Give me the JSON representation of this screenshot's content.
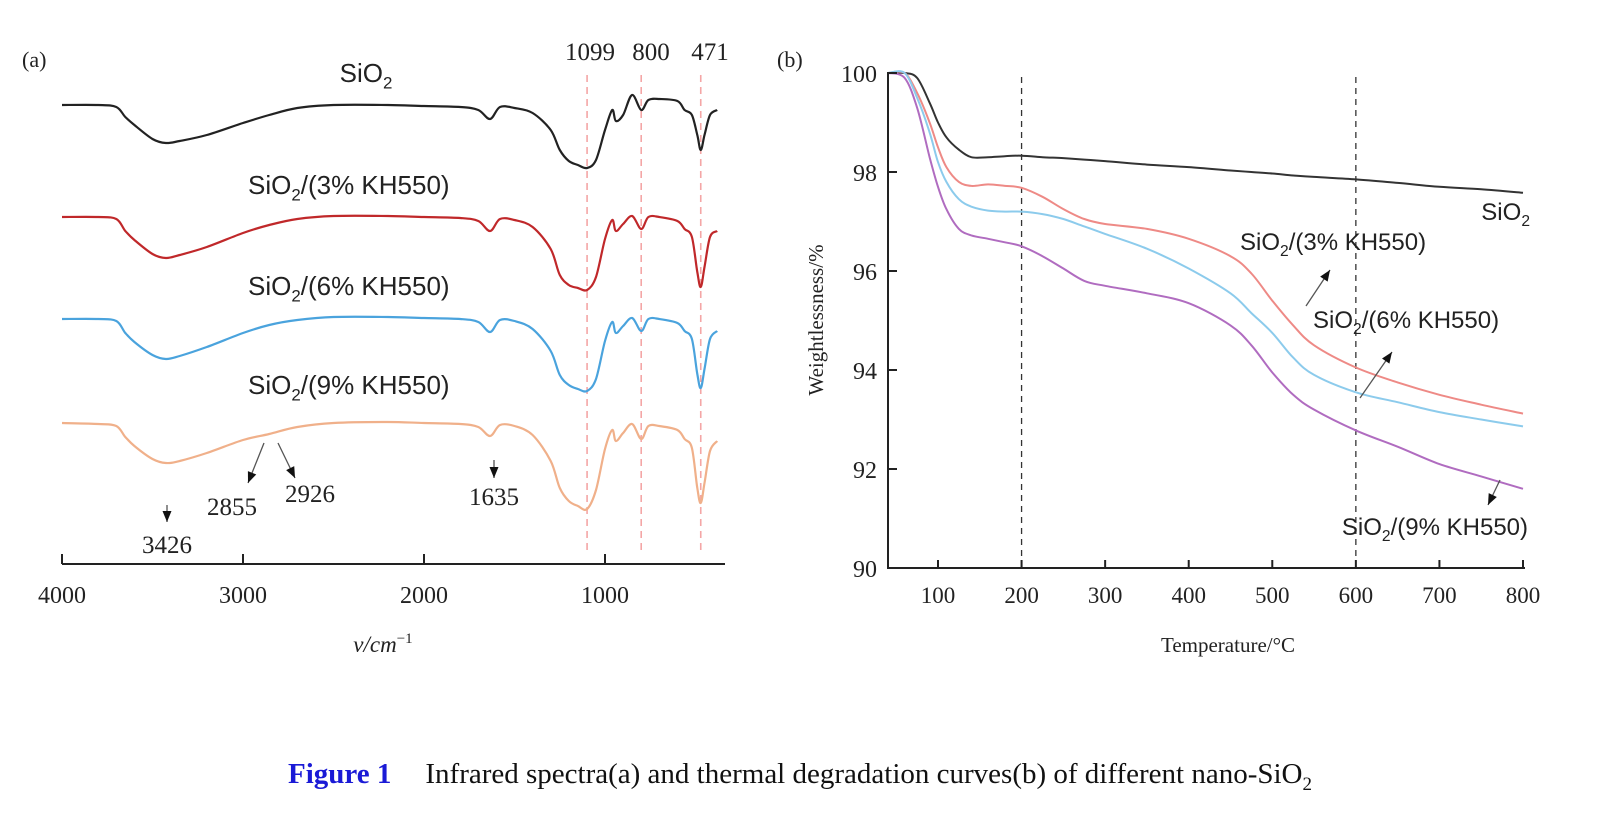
{
  "caption": {
    "label": "Figure 1",
    "text": "Infrared spectra(a) and thermal degradation curves(b) of different nano-SiO",
    "subscript": "2"
  },
  "chart_data": [
    {
      "panel": "(a)",
      "type": "line",
      "title": "",
      "xlabel": "v/cm",
      "xlabel_superscript": "−1",
      "ylabel": "",
      "xlim": [
        4000,
        350
      ],
      "x_reversed": true,
      "xticks": [
        4000,
        3000,
        2000,
        1000
      ],
      "yaxis_visible": false,
      "grid": false,
      "reference_lines": {
        "style": "dashed",
        "color": "#f4a6a6",
        "positions": [
          1099,
          800,
          471
        ],
        "labels": [
          "1099",
          "800",
          "471"
        ]
      },
      "annotations": [
        {
          "text": "3426",
          "x": 3426,
          "series": "SiO2/(9% KH550)",
          "arrow": "down"
        },
        {
          "text": "2855",
          "x": 2855,
          "series": "SiO2/(9% KH550)",
          "arrow": "down-left"
        },
        {
          "text": "2926",
          "x": 2926,
          "series": "SiO2/(9% KH550)",
          "arrow": "down-right"
        },
        {
          "text": "1635",
          "x": 1635,
          "series": "SiO2/(9% KH550)",
          "arrow": "down"
        }
      ],
      "y_units": "relative transmittance (stacked, offset per series)",
      "x": [
        4000,
        3800,
        3700,
        3650,
        3600,
        3500,
        3426,
        3350,
        3200,
        3000,
        2855,
        2700,
        2500,
        2200,
        2000,
        1800,
        1700,
        1635,
        1580,
        1500,
        1400,
        1300,
        1250,
        1200,
        1150,
        1099,
        1050,
        1000,
        960,
        940,
        900,
        850,
        800,
        760,
        700,
        600,
        560,
        520,
        490,
        471,
        450,
        420,
        380
      ],
      "series": [
        {
          "name": "SiO2",
          "color": "#222222",
          "offset": 0,
          "values": [
            1.0,
            1.0,
            0.98,
            0.88,
            0.8,
            0.66,
            0.62,
            0.64,
            0.7,
            0.82,
            0.9,
            0.97,
            1.0,
            1.0,
            0.99,
            0.98,
            0.95,
            0.86,
            0.98,
            0.97,
            0.92,
            0.75,
            0.55,
            0.44,
            0.4,
            0.37,
            0.45,
            0.75,
            0.95,
            0.84,
            0.9,
            1.1,
            0.95,
            1.05,
            1.06,
            1.04,
            0.95,
            0.9,
            0.7,
            0.55,
            0.7,
            0.9,
            0.95
          ]
        },
        {
          "name": "SiO2/(3% KH550)",
          "color": "#c0282a",
          "offset": 1,
          "values": [
            1.0,
            1.0,
            0.98,
            0.86,
            0.77,
            0.63,
            0.59,
            0.62,
            0.7,
            0.84,
            0.92,
            0.98,
            1.01,
            1.01,
            1.0,
            0.99,
            0.96,
            0.86,
            0.98,
            0.97,
            0.9,
            0.68,
            0.42,
            0.32,
            0.29,
            0.27,
            0.4,
            0.78,
            0.97,
            0.86,
            0.93,
            1.01,
            0.88,
            1.0,
            1.0,
            0.96,
            0.88,
            0.8,
            0.45,
            0.3,
            0.5,
            0.8,
            0.86
          ]
        },
        {
          "name": "SiO2/(6% KH550)",
          "color": "#4aa3dd",
          "offset": 2,
          "values": [
            1.0,
            1.0,
            0.98,
            0.86,
            0.77,
            0.64,
            0.6,
            0.63,
            0.72,
            0.86,
            0.94,
            0.99,
            1.02,
            1.02,
            1.01,
            1.0,
            0.97,
            0.87,
            0.99,
            0.98,
            0.9,
            0.68,
            0.44,
            0.34,
            0.3,
            0.28,
            0.4,
            0.78,
            0.97,
            0.86,
            0.93,
            1.01,
            0.88,
            1.0,
            1.0,
            0.96,
            0.88,
            0.8,
            0.45,
            0.31,
            0.5,
            0.8,
            0.88
          ]
        },
        {
          "name": "SiO2/(9% KH550)",
          "color": "#f0b08a",
          "offset": 3,
          "values": [
            1.0,
            0.99,
            0.97,
            0.86,
            0.77,
            0.64,
            0.6,
            0.62,
            0.7,
            0.83,
            0.89,
            0.96,
            1.0,
            1.01,
            1.0,
            0.99,
            0.96,
            0.87,
            0.98,
            0.97,
            0.88,
            0.62,
            0.35,
            0.22,
            0.17,
            0.14,
            0.33,
            0.74,
            0.93,
            0.82,
            0.9,
            0.99,
            0.84,
            0.97,
            0.97,
            0.93,
            0.84,
            0.75,
            0.35,
            0.2,
            0.4,
            0.72,
            0.82
          ]
        }
      ]
    },
    {
      "panel": "(b)",
      "type": "line",
      "title": "",
      "xlabel": "Temperature/°C",
      "ylabel": "Weightlessness/%",
      "xlim": [
        40,
        800
      ],
      "ylim": [
        90,
        100
      ],
      "xticks": [
        100,
        200,
        300,
        400,
        500,
        600,
        700,
        800
      ],
      "yticks": [
        90,
        92,
        94,
        96,
        98,
        100
      ],
      "grid": false,
      "reference_lines": {
        "style": "dashed",
        "color": "#333333",
        "positions": [
          200,
          600
        ]
      },
      "x": [
        40,
        60,
        75,
        90,
        100,
        110,
        125,
        140,
        160,
        180,
        200,
        225,
        250,
        275,
        300,
        350,
        400,
        450,
        475,
        500,
        525,
        550,
        600,
        650,
        700,
        750,
        800
      ],
      "series": [
        {
          "name": "SiO2",
          "label": "SiO2",
          "label_position": "right",
          "color": "#333333",
          "values": [
            100.0,
            100.0,
            99.9,
            99.4,
            99.0,
            98.7,
            98.45,
            98.3,
            98.3,
            98.32,
            98.33,
            98.3,
            98.28,
            98.25,
            98.22,
            98.15,
            98.1,
            98.03,
            98.0,
            97.97,
            97.93,
            97.9,
            97.85,
            97.78,
            97.7,
            97.65,
            97.58
          ]
        },
        {
          "name": "SiO2/(3% KH550)",
          "label": "SiO2/(3% KH550)",
          "label_arrow": "up-right",
          "color": "#ee8a86",
          "values": [
            100.0,
            100.0,
            99.6,
            99.0,
            98.5,
            98.1,
            97.8,
            97.72,
            97.75,
            97.72,
            97.68,
            97.5,
            97.25,
            97.05,
            96.95,
            96.85,
            96.65,
            96.3,
            95.95,
            95.4,
            94.9,
            94.5,
            94.05,
            93.75,
            93.5,
            93.3,
            93.12
          ]
        },
        {
          "name": "SiO2/(6% KH550)",
          "label": "SiO2/(6% KH550)",
          "label_arrow": "up-right",
          "color": "#8ccbec",
          "values": [
            100.0,
            100.0,
            99.5,
            98.8,
            98.2,
            97.8,
            97.45,
            97.3,
            97.22,
            97.2,
            97.2,
            97.15,
            97.05,
            96.9,
            96.75,
            96.45,
            96.05,
            95.55,
            95.15,
            94.75,
            94.25,
            93.9,
            93.55,
            93.35,
            93.15,
            93.0,
            92.86
          ]
        },
        {
          "name": "SiO2/(9% KH550)",
          "label": "SiO2/(9% KH550)",
          "label_arrow": "down-left",
          "color": "#b06cc0",
          "values": [
            100.0,
            99.9,
            99.3,
            98.3,
            97.7,
            97.25,
            96.85,
            96.72,
            96.65,
            96.58,
            96.5,
            96.3,
            96.05,
            95.8,
            95.7,
            95.55,
            95.35,
            94.9,
            94.5,
            93.95,
            93.5,
            93.2,
            92.78,
            92.45,
            92.1,
            91.85,
            91.6
          ]
        }
      ]
    }
  ]
}
